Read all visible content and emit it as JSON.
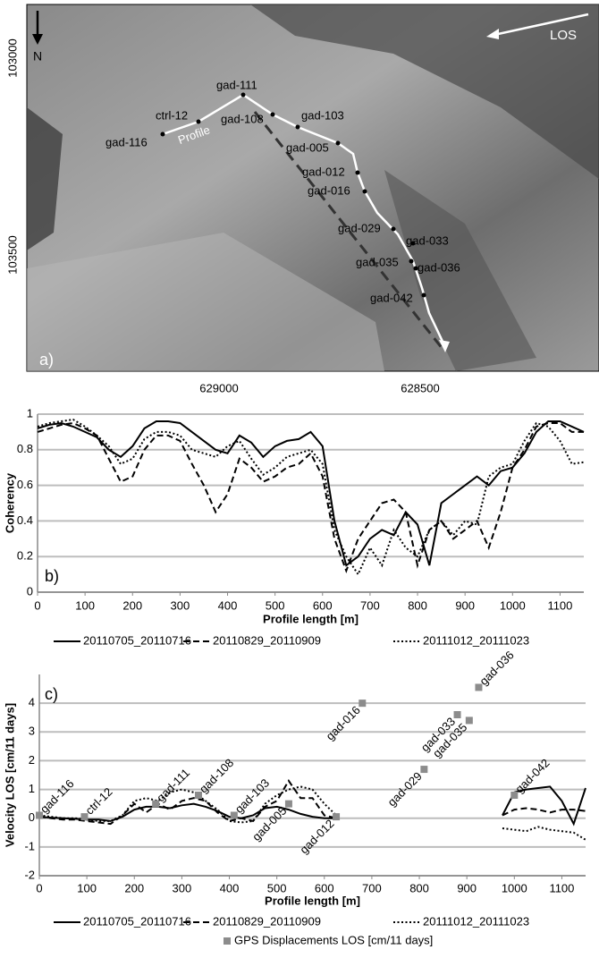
{
  "map": {
    "panel_label": "a)",
    "north": "N",
    "los": "LOS",
    "profile": "Profile",
    "yticks": [
      103000,
      103500
    ],
    "xticks": [
      629000,
      628500
    ],
    "points": [
      "gad-116",
      "ctrl-12",
      "gad-111",
      "gad-108",
      "gad-103",
      "gad-005",
      "gad-012",
      "gad-016",
      "gad-029",
      "gad-033",
      "gad-035",
      "gad-036",
      "gad-042"
    ]
  },
  "chart_data": [
    {
      "type": "line",
      "panel_label": "b)",
      "ylabel": "Coherency",
      "xlabel": "Profile length [m]",
      "xlim": [
        0,
        1150
      ],
      "xticks": [
        0,
        100,
        200,
        300,
        400,
        500,
        600,
        700,
        800,
        900,
        1000,
        1100
      ],
      "ylim": [
        0,
        1
      ],
      "yticks": [
        0,
        0.2,
        0.4,
        0.6,
        0.8,
        1
      ],
      "grid": true,
      "x": [
        0,
        25,
        50,
        75,
        100,
        125,
        150,
        175,
        200,
        225,
        250,
        275,
        300,
        325,
        350,
        375,
        400,
        425,
        450,
        475,
        500,
        525,
        550,
        575,
        600,
        625,
        650,
        675,
        700,
        725,
        750,
        775,
        800,
        825,
        850,
        875,
        900,
        925,
        950,
        975,
        1000,
        1025,
        1050,
        1075,
        1100,
        1125,
        1150
      ],
      "series": [
        {
          "name": "20110705_20110716",
          "color": "#000000",
          "dash": "solid",
          "values": [
            0.92,
            0.94,
            0.95,
            0.93,
            0.9,
            0.87,
            0.8,
            0.76,
            0.82,
            0.92,
            0.96,
            0.96,
            0.95,
            0.9,
            0.85,
            0.8,
            0.78,
            0.88,
            0.84,
            0.76,
            0.82,
            0.85,
            0.86,
            0.9,
            0.82,
            0.4,
            0.15,
            0.2,
            0.3,
            0.35,
            0.32,
            0.45,
            0.38,
            0.15,
            0.5,
            0.55,
            0.6,
            0.65,
            0.6,
            0.68,
            0.7,
            0.78,
            0.9,
            0.96,
            0.96,
            0.93,
            0.9
          ]
        },
        {
          "name": "20110829_20110909",
          "color": "#000000",
          "dash": "dashed",
          "values": [
            0.9,
            0.92,
            0.94,
            0.95,
            0.92,
            0.88,
            0.75,
            0.62,
            0.65,
            0.8,
            0.88,
            0.88,
            0.85,
            0.72,
            0.6,
            0.45,
            0.55,
            0.75,
            0.7,
            0.62,
            0.65,
            0.7,
            0.72,
            0.78,
            0.65,
            0.3,
            0.12,
            0.3,
            0.4,
            0.5,
            0.52,
            0.45,
            0.15,
            0.35,
            0.4,
            0.3,
            0.35,
            0.4,
            0.25,
            0.45,
            0.7,
            0.8,
            0.93,
            0.95,
            0.95,
            0.9,
            0.9
          ]
        },
        {
          "name": "20111012_20111023",
          "color": "#000000",
          "dash": "dotted",
          "values": [
            0.93,
            0.95,
            0.96,
            0.97,
            0.93,
            0.88,
            0.82,
            0.72,
            0.75,
            0.86,
            0.9,
            0.9,
            0.88,
            0.8,
            0.78,
            0.76,
            0.82,
            0.85,
            0.75,
            0.66,
            0.7,
            0.76,
            0.78,
            0.8,
            0.72,
            0.35,
            0.2,
            0.1,
            0.25,
            0.15,
            0.35,
            0.25,
            0.2,
            0.35,
            0.4,
            0.32,
            0.4,
            0.38,
            0.65,
            0.7,
            0.72,
            0.85,
            0.95,
            0.93,
            0.85,
            0.72,
            0.73
          ]
        }
      ]
    },
    {
      "type": "line",
      "panel_label": "c)",
      "ylabel": "Velocity LOS [cm/11 days]",
      "xlabel": "Profile length [m]",
      "xlim": [
        0,
        1150
      ],
      "xticks": [
        0,
        100,
        200,
        300,
        400,
        500,
        600,
        700,
        800,
        900,
        1000,
        1100
      ],
      "ylim": [
        -2,
        5
      ],
      "yticks": [
        -2,
        -1,
        0,
        1,
        2,
        3,
        4
      ],
      "grid": true,
      "x": [
        0,
        25,
        50,
        75,
        100,
        125,
        150,
        175,
        200,
        225,
        250,
        275,
        300,
        325,
        350,
        375,
        400,
        425,
        450,
        475,
        500,
        525,
        550,
        575,
        600,
        625,
        650,
        675,
        700,
        725,
        750,
        775,
        800,
        825,
        850,
        875,
        900,
        925,
        950,
        975,
        1000,
        1025,
        1050,
        1075,
        1100,
        1125,
        1150
      ],
      "series": [
        {
          "name": "20110705_20110716",
          "color": "#000000",
          "dash": "solid",
          "values": [
            0.05,
            0.02,
            0,
            -0.02,
            -0.05,
            -0.05,
            -0.1,
            0.05,
            0.3,
            0.4,
            0.4,
            0.35,
            0.45,
            0.5,
            0.4,
            0.25,
            0.05,
            0,
            0.1,
            0.35,
            0.4,
            0.3,
            0.15,
            0.05,
            0,
            0,
            null,
            null,
            null,
            null,
            null,
            null,
            null,
            null,
            null,
            null,
            null,
            null,
            null,
            0.1,
            0.9,
            1.0,
            1.05,
            1.1,
            0.6,
            -0.2,
            1.05
          ]
        },
        {
          "name": "20110829_20110909",
          "color": "#000000",
          "dash": "dashed",
          "values": [
            0.05,
            0,
            -0.05,
            -0.05,
            -0.1,
            -0.15,
            -0.2,
            0.1,
            0.5,
            0.2,
            0.5,
            0.3,
            0.6,
            0.7,
            0.6,
            0.2,
            -0.1,
            0,
            -0.1,
            0.4,
            0.6,
            1.3,
            0.7,
            0.7,
            0.1,
            0,
            null,
            null,
            null,
            null,
            null,
            null,
            null,
            null,
            null,
            null,
            null,
            null,
            null,
            0.1,
            0.3,
            0.35,
            0.3,
            0.2,
            0.3,
            0.3,
            0.25
          ]
        },
        {
          "name": "20111012_20111023",
          "color": "#000000",
          "dash": "dotted",
          "values": [
            0.1,
            0.05,
            0,
            0,
            -0.05,
            -0.1,
            -0.1,
            0.1,
            0.6,
            0.7,
            0.6,
            0.9,
            1.0,
            0.9,
            0.6,
            0.3,
            -0.1,
            -0.15,
            -0.1,
            0.5,
            0.8,
            1.0,
            1.1,
            1.0,
            0.5,
            0.1,
            null,
            null,
            null,
            null,
            null,
            null,
            null,
            null,
            null,
            null,
            null,
            null,
            null,
            -0.35,
            -0.4,
            -0.45,
            -0.3,
            -0.4,
            -0.45,
            -0.5,
            -0.75
          ]
        }
      ],
      "points": {
        "name": "GPS Displacements LOS [cm/11 days]",
        "color": "#8c8c8c",
        "x": [
          0,
          95,
          245,
          335,
          410,
          525,
          625,
          680,
          810,
          880,
          905,
          925,
          1000
        ],
        "values": [
          0.1,
          0.05,
          0.5,
          0.8,
          0.1,
          0.5,
          0.05,
          4.0,
          1.7,
          3.6,
          3.4,
          4.55,
          0.8
        ],
        "labels": [
          "gad-116",
          "ctrl-12",
          "gad-111",
          "gad-108",
          "gad-103",
          "gad-005",
          "gad-012",
          "gad-016",
          "gad-029",
          "gad-033",
          "gad-035",
          "gad-036",
          "gad-042"
        ]
      }
    }
  ]
}
